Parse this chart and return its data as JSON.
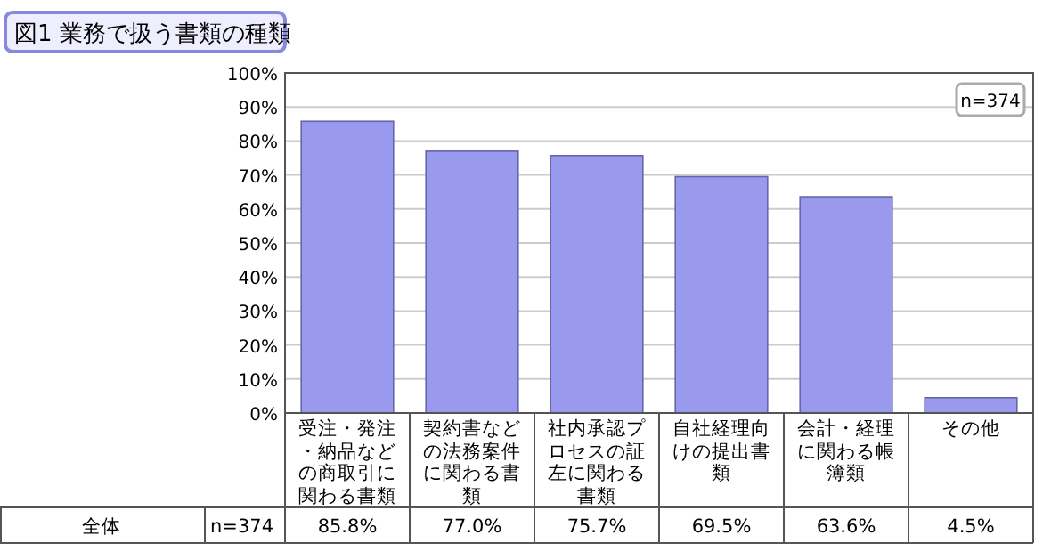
{
  "chart_data": {
    "type": "bar",
    "title": "図1 業務で扱う書類の種類",
    "categories": [
      "受注・発注・納品などの商取引に関わる書類",
      "契約書などの法務案件に関わる書類",
      "社内承認プロセスの証左に関わる書類",
      "自社経理向けの提出書類",
      "会計・経理に関わる帳簿類",
      "その他"
    ],
    "series": [
      {
        "name": "全体",
        "color": "#9999ee",
        "values": [
          85.8,
          77.0,
          75.7,
          69.5,
          63.6,
          4.5
        ],
        "value_labels": [
          "85.8%",
          "77.0%",
          "75.7%",
          "69.5%",
          "63.6%",
          "4.5%"
        ]
      }
    ],
    "ylim": [
      0,
      100
    ],
    "yticks": [
      {
        "value": 0,
        "label": "0%"
      },
      {
        "value": 10,
        "label": "10%"
      },
      {
        "value": 20,
        "label": "20%"
      },
      {
        "value": 30,
        "label": "30%"
      },
      {
        "value": 40,
        "label": "40%"
      },
      {
        "value": 50,
        "label": "50%"
      },
      {
        "value": 60,
        "label": "60%"
      },
      {
        "value": 70,
        "label": "70%"
      },
      {
        "value": 80,
        "label": "80%"
      },
      {
        "value": 90,
        "label": "90%"
      },
      {
        "value": 100,
        "label": "100%"
      }
    ],
    "grid": "y",
    "annotations": [
      "n=374",
      "n=374"
    ]
  }
}
